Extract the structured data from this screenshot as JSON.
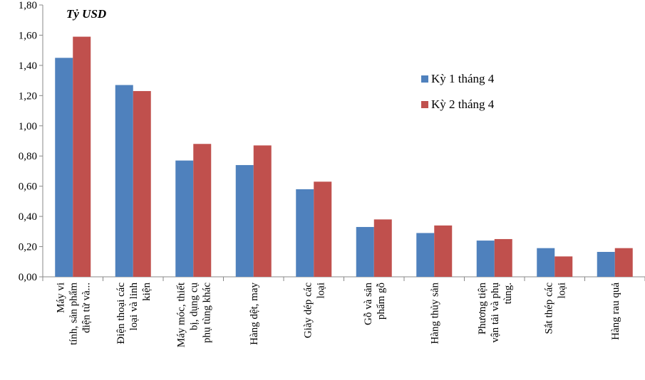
{
  "chart_data": {
    "type": "bar",
    "unit_label": "Tỷ USD",
    "categories": [
      [
        "Máy vi",
        "tính, sản phẩm",
        "điện tử và..."
      ],
      [
        "Điện thoại các",
        "loại và linh",
        "kiện"
      ],
      [
        "Máy móc, thiết",
        "bị, dụng cụ",
        "phụ tùng khác"
      ],
      [
        "Hàng dệt, may"
      ],
      [
        "Giày dép các",
        "loại"
      ],
      [
        "Gỗ và sản",
        "phẩm gỗ"
      ],
      [
        "Hàng thủy sản"
      ],
      [
        "Phương tiện",
        "vận tải và phụ",
        "tùng."
      ],
      [
        "Sắt thép các",
        "loại"
      ],
      [
        "Hàng rau quả"
      ]
    ],
    "series": [
      {
        "name": "Kỳ 1 tháng 4",
        "color": "#4f81bd",
        "values": [
          1.45,
          1.27,
          0.77,
          0.74,
          0.58,
          0.33,
          0.29,
          0.24,
          0.19,
          0.165
        ]
      },
      {
        "name": "Kỳ 2 tháng 4",
        "color": "#c0504d",
        "values": [
          1.59,
          1.23,
          0.88,
          0.87,
          0.63,
          0.38,
          0.34,
          0.25,
          0.135,
          0.19
        ]
      }
    ],
    "y_ticks": [
      "0,00",
      "0,20",
      "0,40",
      "0,60",
      "0,80",
      "1,00",
      "1,20",
      "1,40",
      "1,60",
      "1,80"
    ],
    "ylim": [
      0,
      1.8
    ],
    "grid": false,
    "legend_position": "right"
  }
}
